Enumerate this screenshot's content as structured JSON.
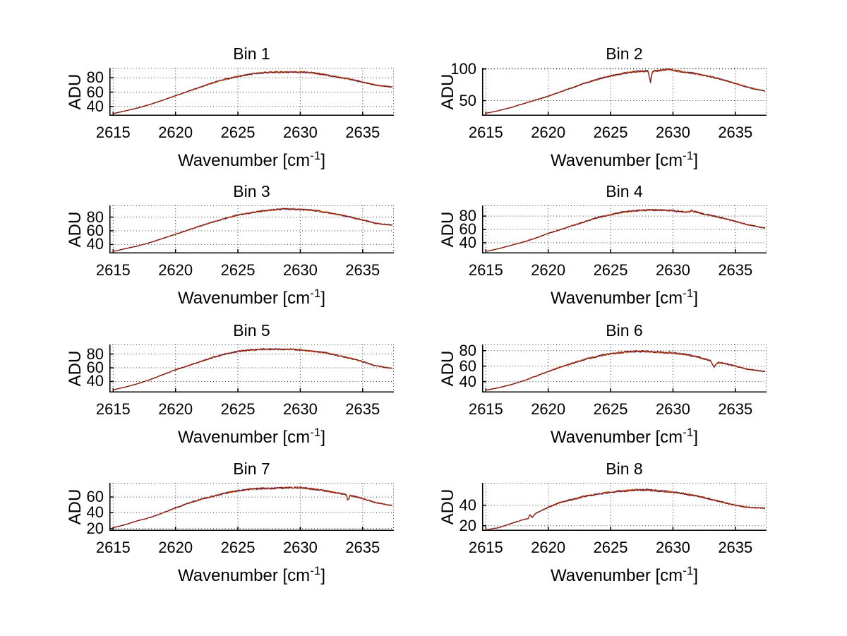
{
  "figure": {
    "background": "#ffffff"
  },
  "chart_data": {
    "type": "line",
    "title": "",
    "xlabel_parts": {
      "pre": "Wavenumber [cm",
      "sup": "-1",
      "post": "]"
    },
    "ylabel": "ADU",
    "xlim": [
      2614.7,
      2637.5
    ],
    "xticks": [
      2615,
      2620,
      2625,
      2630,
      2635
    ],
    "grid": "on",
    "grid_style": "dotted",
    "legend": "none",
    "axis_color": "#000000",
    "series": [
      {
        "name": "trace-blue",
        "color": "#3c50c8"
      },
      {
        "name": "trace-orange",
        "color": "#e8761a"
      },
      {
        "name": "trace-darkred",
        "color": "#7d1414"
      }
    ],
    "subplots": [
      {
        "title": "Bin 1",
        "yticks": [
          40,
          60,
          80
        ],
        "ylim": [
          27,
          94
        ],
        "noise": 1.2,
        "seed": 101,
        "x": [
          2615,
          2616,
          2617,
          2618,
          2619,
          2620,
          2621,
          2622,
          2623,
          2624,
          2625,
          2626,
          2627,
          2628,
          2629,
          2630,
          2631,
          2632,
          2633,
          2634,
          2635,
          2636,
          2637.4
        ],
        "y": [
          30,
          34,
          38,
          43,
          49,
          55,
          61,
          67,
          73,
          78,
          82,
          85,
          87,
          88,
          88,
          88,
          87,
          84,
          81,
          78,
          74,
          70,
          67
        ]
      },
      {
        "title": "Bin 2",
        "yticks": [
          50,
          100
        ],
        "ylim": [
          26,
          102
        ],
        "noise": 1.5,
        "seed": 202,
        "x": [
          2615,
          2616,
          2617,
          2618,
          2619,
          2620,
          2621,
          2622,
          2623,
          2624,
          2625,
          2626,
          2627,
          2628,
          2628.2,
          2628.35,
          2629,
          2629.6,
          2630,
          2631,
          2632,
          2633,
          2634,
          2635,
          2636,
          2637.4
        ],
        "y": [
          30,
          34,
          39,
          45,
          51,
          57,
          64,
          71,
          78,
          84,
          89,
          93,
          96,
          97,
          79,
          96,
          98,
          100,
          98,
          95,
          92,
          88,
          83,
          77,
          71,
          65
        ]
      },
      {
        "title": "Bin 3",
        "yticks": [
          40,
          60,
          80
        ],
        "ylim": [
          27,
          97
        ],
        "noise": 1.2,
        "seed": 303,
        "x": [
          2615,
          2616,
          2617,
          2618,
          2619,
          2620,
          2621,
          2622,
          2623,
          2624,
          2625,
          2626,
          2627,
          2628,
          2629,
          2630,
          2631,
          2632,
          2633,
          2634,
          2635,
          2636,
          2637.4
        ],
        "y": [
          30,
          34,
          38,
          43,
          49,
          55,
          61,
          67,
          73,
          78,
          83,
          86,
          89,
          91,
          92,
          91,
          90,
          87,
          84,
          80,
          76,
          71,
          68
        ]
      },
      {
        "title": "Bin 4",
        "yticks": [
          40,
          60,
          80
        ],
        "ylim": [
          24,
          96
        ],
        "noise": 1.3,
        "seed": 404,
        "x": [
          2615,
          2616,
          2617,
          2618,
          2619,
          2620,
          2621,
          2622,
          2623,
          2624,
          2625,
          2626,
          2627,
          2628,
          2629,
          2630,
          2631,
          2631.5,
          2632.5,
          2633,
          2634,
          2635,
          2636,
          2637.4
        ],
        "y": [
          27,
          31,
          36,
          41,
          47,
          54,
          60,
          66,
          72,
          78,
          82,
          86,
          88,
          89,
          89,
          88,
          86,
          88,
          83,
          81,
          77,
          72,
          67,
          62
        ]
      },
      {
        "title": "Bin 5",
        "yticks": [
          40,
          60,
          80
        ],
        "ylim": [
          24,
          94
        ],
        "noise": 1.2,
        "seed": 505,
        "x": [
          2615,
          2616,
          2617,
          2618,
          2619,
          2620,
          2621,
          2622,
          2623,
          2624,
          2625,
          2626,
          2627,
          2628,
          2629,
          2630,
          2631,
          2632,
          2633,
          2634,
          2635,
          2636,
          2637.4
        ],
        "y": [
          28,
          32,
          37,
          43,
          50,
          57,
          63,
          69,
          75,
          80,
          84,
          86,
          87,
          87,
          87,
          86,
          84,
          82,
          78,
          74,
          69,
          63,
          59
        ]
      },
      {
        "title": "Bin 6",
        "yticks": [
          40,
          60,
          80
        ],
        "ylim": [
          26,
          88
        ],
        "noise": 1.3,
        "seed": 606,
        "x": [
          2615,
          2616,
          2617,
          2618,
          2619,
          2620,
          2621,
          2622,
          2623,
          2624,
          2625,
          2626,
          2627,
          2628,
          2629,
          2630,
          2631,
          2632,
          2633,
          2633.3,
          2633.6,
          2634,
          2635,
          2636,
          2637.4
        ],
        "y": [
          29,
          32,
          36,
          41,
          47,
          53,
          59,
          64,
          69,
          73,
          76,
          78,
          79,
          79,
          78,
          77,
          75,
          72,
          67,
          59,
          65,
          64,
          60,
          56,
          53
        ]
      },
      {
        "title": "Bin 7",
        "yticks": [
          20,
          40,
          60
        ],
        "ylim": [
          17,
          78
        ],
        "noise": 1.2,
        "seed": 707,
        "x": [
          2615,
          2616,
          2617,
          2618,
          2619,
          2620,
          2621,
          2622,
          2623,
          2624,
          2625,
          2626,
          2627,
          2628,
          2629,
          2630,
          2631,
          2632,
          2633,
          2633.7,
          2633.8,
          2634,
          2635,
          2636,
          2637.4
        ],
        "y": [
          21,
          25,
          30,
          34,
          40,
          46,
          52,
          57,
          61,
          65,
          68,
          70,
          71,
          71,
          72,
          72,
          70,
          68,
          65,
          63,
          55,
          62,
          58,
          53,
          49
        ]
      },
      {
        "title": "Bin 8",
        "yticks": [
          20,
          40
        ],
        "ylim": [
          15,
          62
        ],
        "noise": 1.0,
        "seed": 808,
        "x": [
          2615,
          2616,
          2617,
          2618,
          2618.4,
          2618.55,
          2618.7,
          2619,
          2620,
          2621,
          2622,
          2623,
          2624,
          2625,
          2626,
          2627,
          2628,
          2629,
          2630,
          2631,
          2632,
          2633,
          2634,
          2635,
          2636,
          2637.4
        ],
        "y": [
          16,
          18,
          22,
          26,
          27,
          31,
          28,
          32,
          38,
          43,
          46,
          49,
          51,
          53,
          54,
          55,
          55,
          54,
          53,
          51,
          49,
          46,
          43,
          40,
          38,
          37
        ]
      }
    ]
  }
}
